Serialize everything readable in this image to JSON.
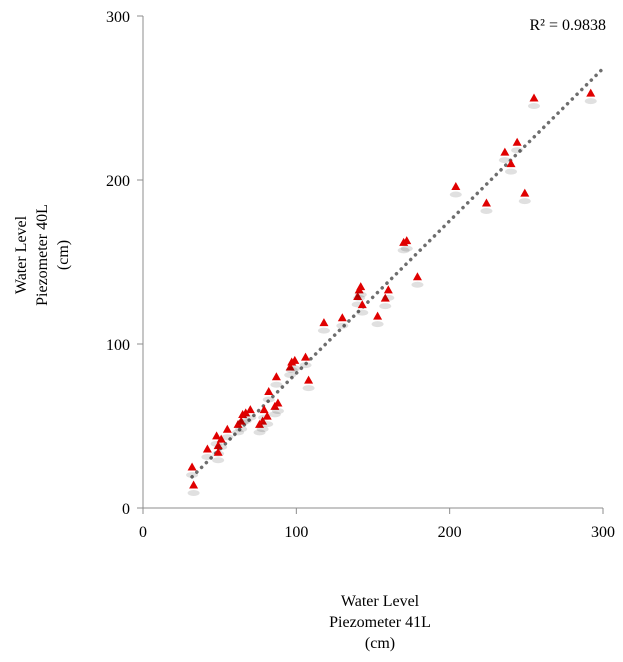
{
  "chart_data": {
    "type": "scatter",
    "title": "",
    "xlabel": [
      "Water Level",
      "Piezometer 41L",
      "(cm)"
    ],
    "ylabel": [
      "Water Level",
      "Piezometer 40L",
      "(cm)"
    ],
    "xlim": [
      0,
      300
    ],
    "ylim": [
      0,
      300
    ],
    "xticks": [
      0,
      100,
      200,
      300
    ],
    "yticks": [
      0,
      100,
      200,
      300
    ],
    "grid": false,
    "legend": "none",
    "r_squared_label": "R² = 0.9838",
    "marker": "triangle",
    "marker_color": "#e00000",
    "trendline": {
      "type": "linear",
      "style": "dotted",
      "color": "#6e6e6e",
      "x": [
        32,
        300
      ],
      "y": [
        19,
        268
      ]
    },
    "series": [
      {
        "points": [
          [
            32,
            25
          ],
          [
            33,
            14
          ],
          [
            42,
            36
          ],
          [
            48,
            44
          ],
          [
            49,
            38
          ],
          [
            49,
            34
          ],
          [
            51,
            42
          ],
          [
            55,
            48
          ],
          [
            62,
            51
          ],
          [
            64,
            53
          ],
          [
            65,
            57
          ],
          [
            67,
            58
          ],
          [
            70,
            60
          ],
          [
            76,
            51
          ],
          [
            78,
            53
          ],
          [
            79,
            60
          ],
          [
            81,
            56
          ],
          [
            82,
            71
          ],
          [
            86,
            62
          ],
          [
            87,
            80
          ],
          [
            88,
            64
          ],
          [
            96,
            86
          ],
          [
            97,
            89
          ],
          [
            99,
            90
          ],
          [
            106,
            92
          ],
          [
            108,
            78
          ],
          [
            118,
            113
          ],
          [
            130,
            116
          ],
          [
            140,
            129
          ],
          [
            141,
            133
          ],
          [
            142,
            135
          ],
          [
            143,
            124
          ],
          [
            153,
            117
          ],
          [
            158,
            128
          ],
          [
            160,
            133
          ],
          [
            170,
            162
          ],
          [
            172,
            163
          ],
          [
            179,
            141
          ],
          [
            204,
            196
          ],
          [
            224,
            186
          ],
          [
            236,
            217
          ],
          [
            240,
            210
          ],
          [
            244,
            223
          ],
          [
            249,
            192
          ],
          [
            255,
            250
          ],
          [
            292,
            253
          ]
        ]
      }
    ]
  }
}
